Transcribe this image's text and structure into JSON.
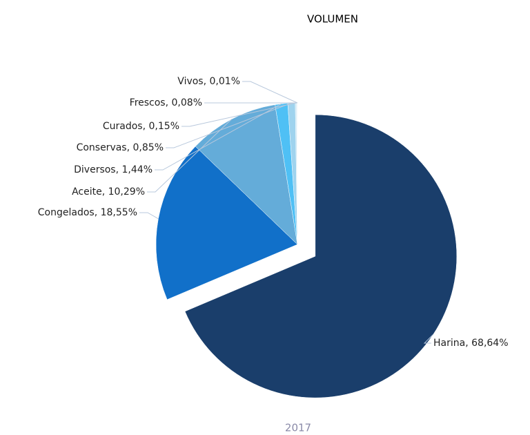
{
  "chart_data": {
    "type": "pie",
    "title": "VOLUMEN",
    "subtitle": "2017",
    "categories": [
      "Harina",
      "Congelados",
      "Aceite",
      "Diversos",
      "Conservas",
      "Curados",
      "Frescos",
      "Vivos"
    ],
    "values": [
      68.64,
      18.55,
      10.29,
      1.44,
      0.85,
      0.15,
      0.08,
      0.01
    ],
    "value_labels": [
      "68,64%",
      "18,55%",
      "10,29%",
      "1,44%",
      "0,85%",
      "0,15%",
      "0,08%",
      "0,01%"
    ],
    "label_separator": ", ",
    "colors": [
      "#1a3e6b",
      "#1170c9",
      "#64acd9",
      "#4fc0f5",
      "#9fd3ee",
      "#c7e5f4",
      "#e3f0f7",
      "#2c4f78"
    ],
    "exploded": "Harina"
  }
}
